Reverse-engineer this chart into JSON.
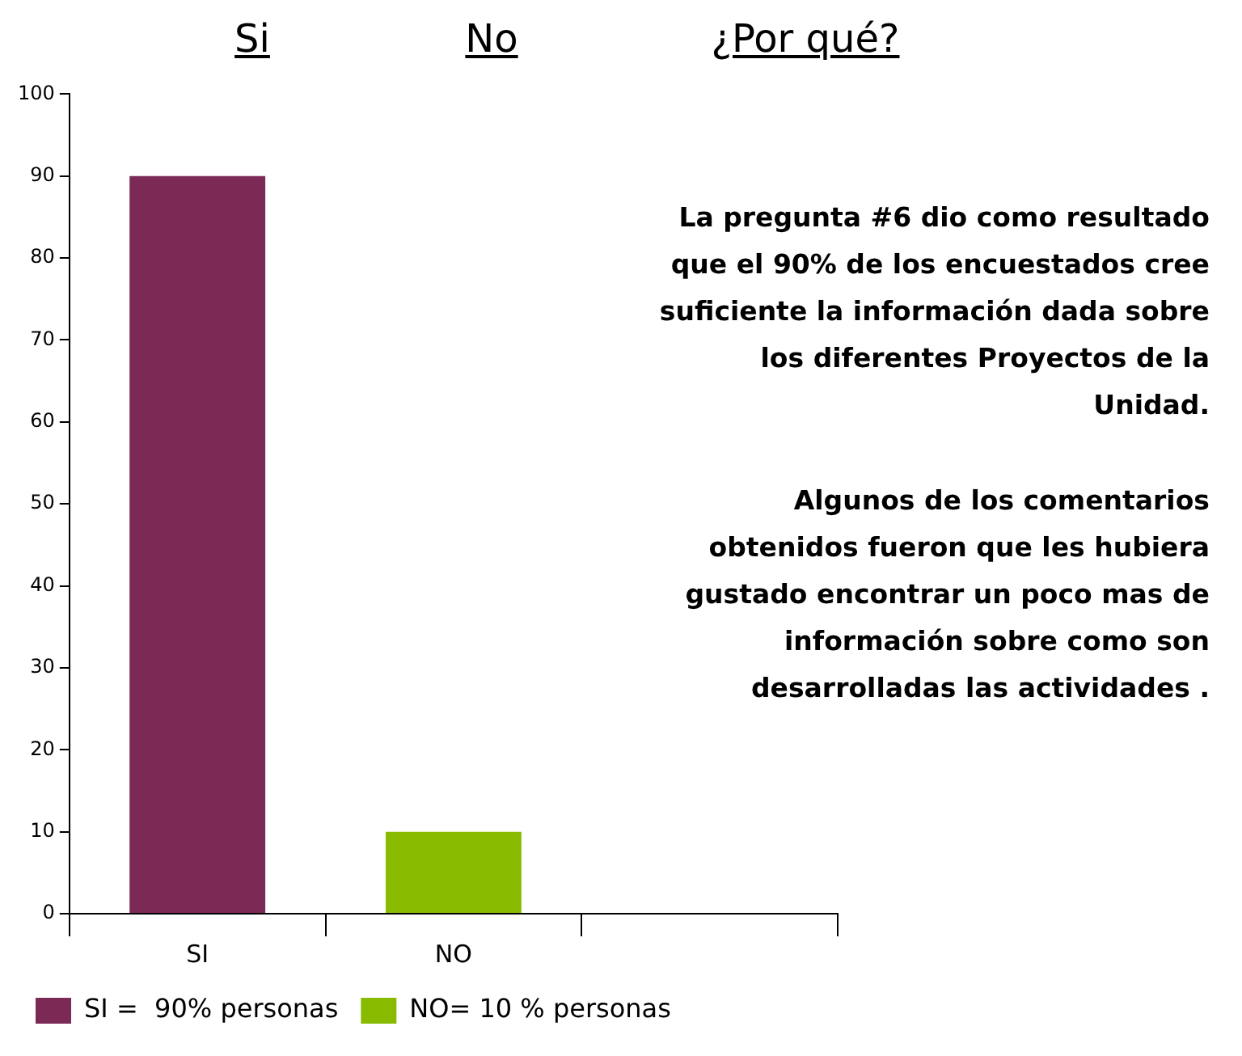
{
  "chart_data": {
    "type": "bar",
    "categories": [
      "SI",
      "NO",
      null
    ],
    "stacked": true,
    "series": [
      {
        "name": "SI =  90% personas",
        "color": "#7a2a55",
        "values": [
          90,
          null,
          null
        ]
      },
      {
        "name": "NO= 10 % personas",
        "color": "#88bb00",
        "values": [
          null,
          10,
          null
        ]
      }
    ],
    "ylim": [
      0,
      100
    ],
    "yticks": [
      0,
      10,
      20,
      30,
      40,
      50,
      60,
      70,
      80,
      90,
      100
    ],
    "grid": false,
    "legend": "bottom left",
    "annotations": [
      "Si",
      "No",
      "¿Por qué?",
      "La pregunta  #6 dio como resultado que el  90% de los encuestados cree suficiente la información dada sobre los diferentes Proyectos de la Unidad.",
      "Algunos de los comentarios obtenidos fueron que les hubiera gustado encontrar  un poco mas de información sobre como son desarrolladas las actividades ."
    ]
  }
}
